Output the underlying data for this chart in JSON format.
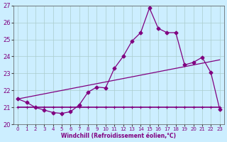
{
  "xlabel": "Windchill (Refroidissement éolien,°C)",
  "x": [
    0,
    1,
    2,
    3,
    4,
    5,
    6,
    7,
    8,
    9,
    10,
    11,
    12,
    13,
    14,
    15,
    16,
    17,
    18,
    19,
    20,
    21,
    22,
    23
  ],
  "y_curve": [
    21.5,
    21.3,
    21.0,
    20.85,
    20.7,
    20.65,
    20.75,
    21.15,
    21.9,
    22.2,
    22.15,
    23.3,
    24.0,
    24.9,
    25.4,
    26.85,
    25.65,
    25.4,
    25.4,
    23.5,
    23.65,
    23.95,
    23.05,
    20.9
  ],
  "y_linear": [
    21.5,
    21.6,
    21.7,
    21.8,
    21.9,
    22.0,
    22.1,
    22.2,
    22.3,
    22.4,
    22.5,
    22.6,
    22.7,
    22.8,
    22.9,
    23.0,
    23.1,
    23.2,
    23.3,
    23.4,
    23.5,
    23.6,
    23.7,
    23.8
  ],
  "y_flat": [
    21.0,
    21.0,
    21.0,
    21.0,
    21.0,
    21.0,
    21.0,
    21.0,
    21.0,
    21.0,
    21.0,
    21.0,
    21.0,
    21.0,
    21.0,
    21.0,
    21.0,
    21.0,
    21.0,
    21.0,
    21.0,
    21.0,
    21.0,
    21.0
  ],
  "line_color": "#800080",
  "bg_color": "#cceeff",
  "grid_color": "#aacccc",
  "ylim": [
    20,
    27
  ],
  "yticks": [
    20,
    21,
    22,
    23,
    24,
    25,
    26,
    27
  ],
  "xticks": [
    0,
    1,
    2,
    3,
    4,
    5,
    6,
    7,
    8,
    9,
    10,
    11,
    12,
    13,
    14,
    15,
    16,
    17,
    18,
    19,
    20,
    21,
    22,
    23
  ],
  "xlabel_fontsize": 5.5,
  "ytick_fontsize": 6,
  "xtick_fontsize": 5
}
